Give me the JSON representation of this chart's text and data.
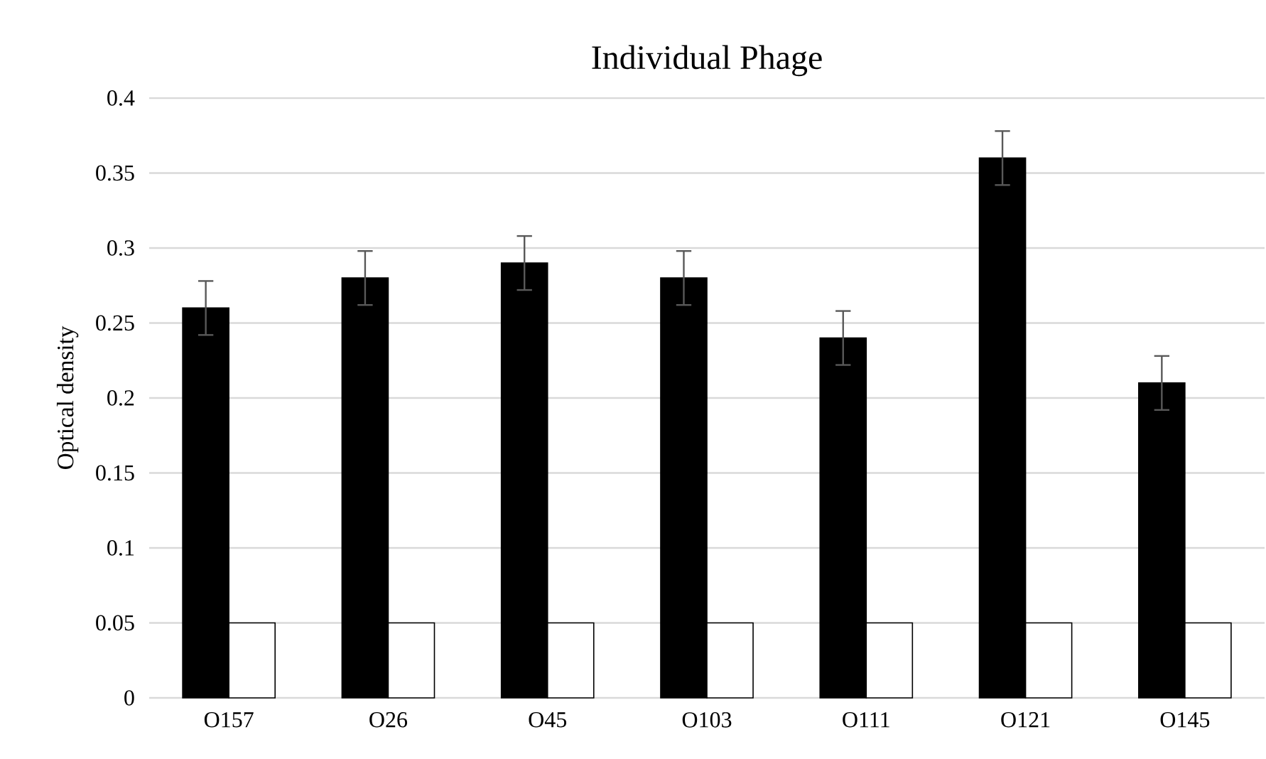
{
  "chart_data": {
    "type": "bar",
    "title": "Individual Phage",
    "ylabel": "Optical density",
    "categories": [
      "O157",
      "O26",
      "O45",
      "O103",
      "O111",
      "O121",
      "O145"
    ],
    "series": [
      {
        "color": "#000000",
        "values": [
          0.26,
          0.28,
          0.29,
          0.28,
          0.24,
          0.36,
          0.21
        ],
        "errors": [
          0.018,
          0.018,
          0.018,
          0.018,
          0.018,
          0.018,
          0.018
        ]
      },
      {
        "color": "#ffffff",
        "values": [
          0.05,
          0.05,
          0.05,
          0.05,
          0.05,
          0.05,
          0.05
        ]
      }
    ],
    "ylim": [
      0,
      0.4
    ],
    "yticks": [
      0,
      0.05,
      0.1,
      0.15,
      0.2,
      0.25,
      0.3,
      0.35,
      0.4
    ],
    "grid": "y"
  }
}
